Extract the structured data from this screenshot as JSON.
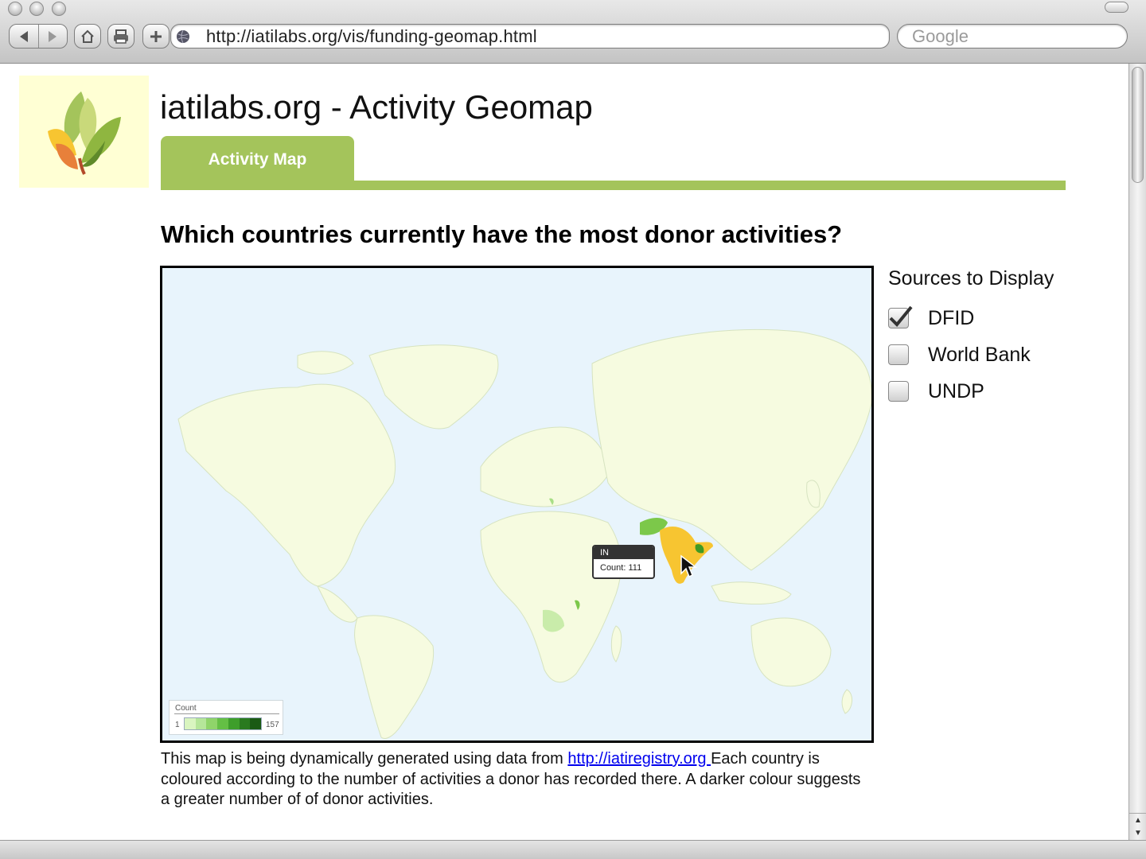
{
  "browser": {
    "url": "http://iatilabs.org/vis/funding-geomap.html",
    "search_placeholder": "Google"
  },
  "page": {
    "site_title": "iatilabs.org - Activity Geomap",
    "tab_label": "Activity Map",
    "question": "Which countries currently have the most donor activities?",
    "sources": {
      "heading": "Sources to Display",
      "items": [
        {
          "label": "DFID",
          "checked": true
        },
        {
          "label": "World Bank",
          "checked": false
        },
        {
          "label": "UNDP",
          "checked": false
        }
      ]
    },
    "map": {
      "legend_title": "Count",
      "legend_min": "1",
      "legend_max": "157",
      "tooltip_country": "IN",
      "tooltip_count": "Count: 111"
    },
    "description": {
      "before_link": "This map is being dynamically generated using data from ",
      "link_text": "http://iatiregistry.org ",
      "after_link": " Each country is coloured according to the number of activities a donor has recorded there. A darker colour suggests a greater number of of donor activities."
    }
  },
  "colors": {
    "accent_green": "#a4c45b",
    "map_ocean": "#e8f4fc",
    "map_land": "#f6fbe0",
    "highlight": "#f7c531"
  }
}
